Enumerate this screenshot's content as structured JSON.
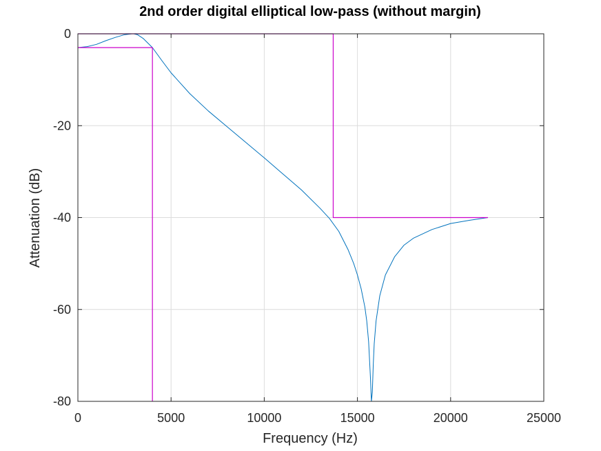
{
  "chart_data": {
    "type": "line",
    "title": "2nd order digital elliptical low-pass (without margin)",
    "xlabel": "Frequency (Hz)",
    "ylabel": "Attenuation (dB)",
    "xlim": [
      0,
      25000
    ],
    "ylim": [
      -80,
      0
    ],
    "xticks": [
      0,
      5000,
      10000,
      15000,
      20000,
      25000
    ],
    "yticks": [
      0,
      -20,
      -40,
      -60,
      -80
    ],
    "grid": true,
    "legend": "none",
    "colors": {
      "response": "#0072bd",
      "mask": "#cc00cc",
      "grid": "#dcdcdc",
      "axes": "#262626"
    },
    "series": [
      {
        "x": [
          0,
          500,
          1000,
          1500,
          2000,
          2500,
          2900,
          3000,
          3200,
          3500,
          4000,
          4500,
          5000,
          6000,
          7000,
          8000,
          9000,
          10000,
          11000,
          12000,
          13000,
          13500,
          14000,
          14500,
          14800,
          15000,
          15200,
          15400,
          15500,
          15600,
          15700,
          15750,
          15800,
          15850,
          15900,
          16000,
          16200,
          16500,
          17000,
          17500,
          18000,
          19000,
          20000,
          21000,
          22000
        ],
        "values": [
          -3,
          -2.8,
          -2.3,
          -1.5,
          -0.8,
          -0.2,
          0,
          0,
          -0.2,
          -1,
          -3,
          -5.8,
          -8.5,
          -13,
          -16.8,
          -20.2,
          -23.6,
          -27,
          -30.5,
          -34,
          -38,
          -40.2,
          -43,
          -47,
          -50,
          -52.5,
          -55.5,
          -59.5,
          -62.5,
          -67,
          -75,
          -80,
          -78,
          -72,
          -67.5,
          -62.5,
          -57,
          -52.5,
          -48.5,
          -46,
          -44.5,
          -42.6,
          -41.3,
          -40.6,
          -40
        ]
      },
      {
        "x": [
          0,
          4000,
          4000
        ],
        "values": [
          -3,
          -3,
          -80
        ]
      },
      {
        "x": [
          0,
          13700,
          13700,
          22000
        ],
        "values": [
          0,
          0,
          -40,
          -40
        ]
      }
    ]
  }
}
